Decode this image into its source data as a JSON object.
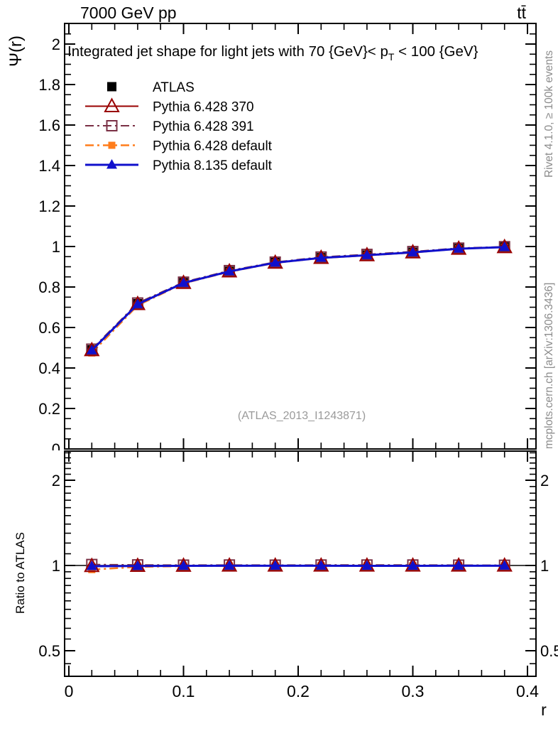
{
  "page": {
    "header_left": "7000 GeV pp",
    "header_right": "tt̄",
    "title_part1": "Integrated jet shape for light jets with 70 {GeV}< p",
    "title_sub": "T",
    "title_part2": " < 100 {GeV}",
    "watermark": "(ATLAS_2013_I1243871)",
    "side_text_top": "Rivet 4.1.0, ≥ 100k events",
    "side_text_bottom": "mcplots.cern.ch [arXiv:1306.3436]",
    "ylabel_main": "Ψ(r)",
    "ylabel_ratio": "Ratio to ATLAS",
    "xlabel": "r"
  },
  "colors": {
    "atlas": "#000000",
    "pythia6_370": "#990000",
    "pythia6_391": "#7a3045",
    "pythia6_default": "#ff7d1c",
    "pythia8_default": "#1010cc",
    "watermark": "#9a9a9a",
    "side_text": "#8c8c8c",
    "frame": "#000000"
  },
  "chart_data": {
    "type": "line",
    "title": "Integrated jet shape for light jets with 70 {GeV}< p_T < 100 {GeV}",
    "xlabel": "r",
    "x": [
      0.02,
      0.06,
      0.1,
      0.14,
      0.18,
      0.22,
      0.26,
      0.3,
      0.34,
      0.38
    ],
    "xticks": {
      "major": [
        0,
        0.1,
        0.2,
        0.3,
        0.4
      ],
      "labels": [
        "0",
        "0.1",
        "0.2",
        "0.3",
        "0.4"
      ],
      "minor_step": 0.02
    },
    "legend": [
      "ATLAS",
      "Pythia 6.428 370",
      "Pythia 6.428 391",
      "Pythia 6.428 default",
      "Pythia 8.135 default"
    ],
    "legend_position": "top-left",
    "main": {
      "ylabel": "Ψ(r)",
      "ylim": [
        0,
        2.1
      ],
      "yscale": "linear",
      "grid": false,
      "yticks": {
        "major": [
          0,
          0.2,
          0.4,
          0.6,
          0.8,
          1.0,
          1.2,
          1.4,
          1.6,
          1.8,
          2.0
        ],
        "labels": [
          "0",
          "0.2",
          "0.4",
          "0.6",
          "0.8",
          "1",
          "1.2",
          "1.4",
          "1.6",
          "1.8",
          "2"
        ],
        "minor_step": 0.05
      },
      "draw_order": [
        0,
        3,
        2,
        1,
        4
      ],
      "series": [
        {
          "name": "ATLAS",
          "color": "#000000",
          "marker": "square-filled",
          "size": 13,
          "line": "none",
          "width": 2,
          "yerr": 0.012,
          "values": [
            0.49,
            0.718,
            0.822,
            0.878,
            0.921,
            0.945,
            0.958,
            0.972,
            0.99,
            0.998
          ]
        },
        {
          "name": "Pythia 6.428 370",
          "color": "#990000",
          "marker": "triangle-open",
          "size": 17,
          "line": "solid",
          "width": 2,
          "values": [
            0.488,
            0.716,
            0.82,
            0.877,
            0.92,
            0.944,
            0.957,
            0.971,
            0.989,
            0.997
          ]
        },
        {
          "name": "Pythia 6.428 391",
          "color": "#7a3045",
          "marker": "square-open",
          "size": 14,
          "line": "dashdot",
          "width": 2,
          "values": [
            0.493,
            0.721,
            0.824,
            0.881,
            0.923,
            0.948,
            0.961,
            0.975,
            0.992,
            0.999
          ]
        },
        {
          "name": "Pythia 6.428 default",
          "color": "#ff7d1c",
          "marker": "square-filled",
          "size": 10,
          "line": "dashdot",
          "width": 2.5,
          "values": [
            0.474,
            0.709,
            0.818,
            0.875,
            0.919,
            0.943,
            0.956,
            0.97,
            0.989,
            0.997
          ]
        },
        {
          "name": "Pythia 8.135 default",
          "color": "#1010cc",
          "marker": "triangle-filled",
          "size": 13,
          "line": "solid",
          "width": 3,
          "values": [
            0.487,
            0.715,
            0.82,
            0.877,
            0.92,
            0.944,
            0.957,
            0.971,
            0.989,
            0.997
          ]
        }
      ]
    },
    "ratio": {
      "ylabel": "Ratio to ATLAS",
      "yscale": "log",
      "ylim": [
        0.406,
        2.53
      ],
      "reference_line": 1,
      "yticks": {
        "major": [
          0.5,
          1,
          2
        ],
        "labels": [
          "0.5",
          "1",
          "2"
        ]
      },
      "draw_order": [
        2,
        1,
        0,
        3
      ],
      "series": [
        {
          "name": "Pythia 6.428 370",
          "values": [
            0.996,
            0.997,
            0.998,
            0.999,
            0.999,
            0.999,
            0.999,
            0.999,
            0.999,
            0.999
          ]
        },
        {
          "name": "Pythia 6.428 391",
          "values": [
            1.008,
            1.005,
            1.003,
            1.004,
            1.003,
            1.004,
            1.004,
            1.004,
            1.003,
            1.002
          ]
        },
        {
          "name": "Pythia 6.428 default",
          "values": [
            0.967,
            0.988,
            0.995,
            0.997,
            0.998,
            0.998,
            0.998,
            0.998,
            0.999,
            0.999
          ]
        },
        {
          "name": "Pythia 8.135 default",
          "values": [
            0.994,
            0.996,
            0.997,
            0.998,
            0.998,
            0.998,
            0.997,
            0.997,
            0.998,
            0.998
          ]
        }
      ]
    }
  }
}
